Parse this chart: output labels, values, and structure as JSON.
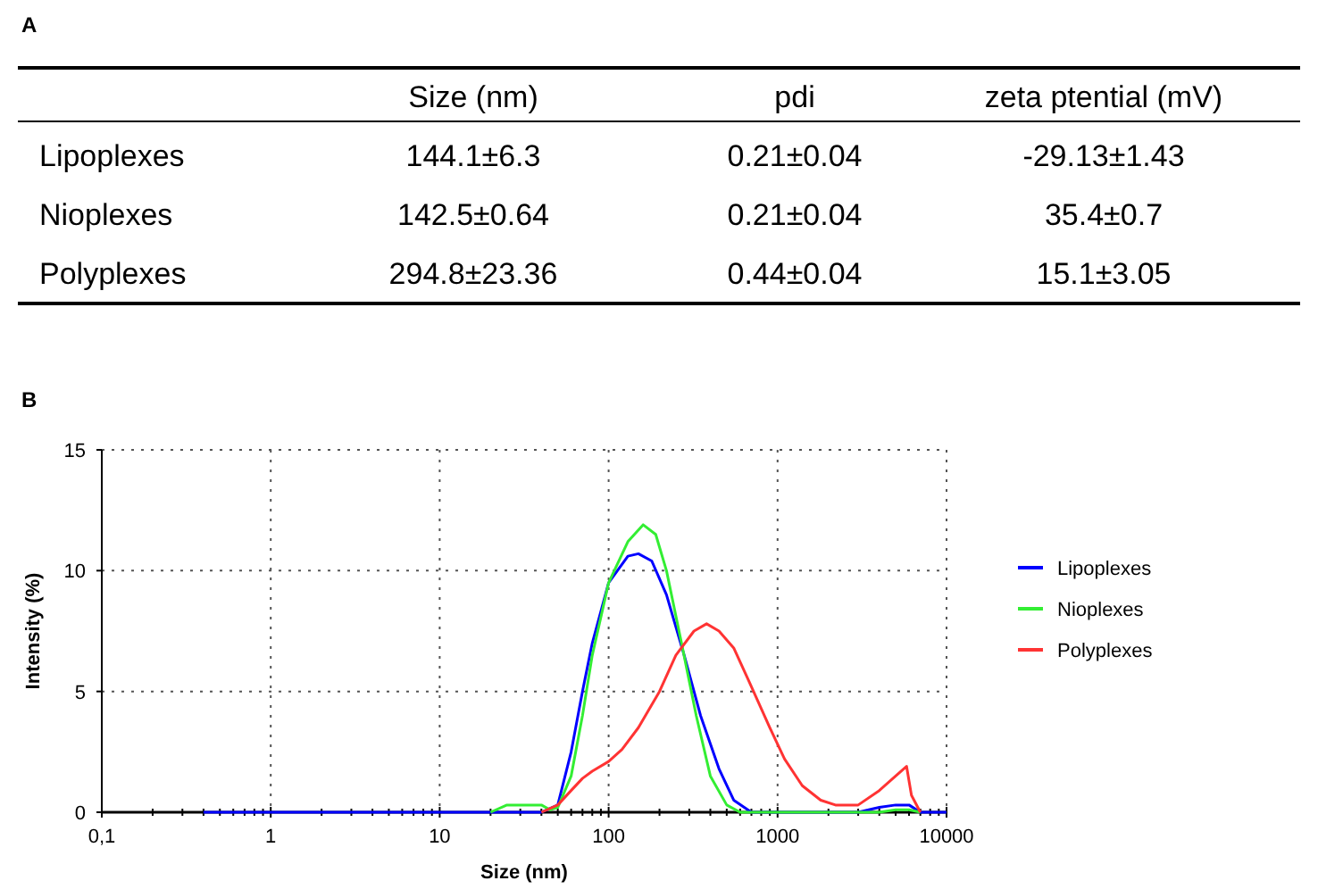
{
  "chart_data": [
    {
      "type": "other",
      "title": "A",
      "categories": [
        "Size (nm)",
        "pdi",
        "zeta ptential (mV)"
      ],
      "y_categories": [
        "Lipoplexes",
        "Nioplexes",
        "Polyplexes"
      ],
      "cell_labels": [
        [
          "144.1±6.3",
          "0.21±0.04",
          "-29.13±1.43"
        ],
        [
          "142.5±0.64",
          "0.21±0.04",
          "35.4±0.7"
        ],
        [
          "294.8±23.36",
          "0.44±0.04",
          "15.1±3.05"
        ]
      ]
    },
    {
      "type": "line",
      "title": "B",
      "xlabel": "Size (nm)",
      "ylabel": "Intensity (%)",
      "log": "x",
      "grid": true,
      "legend": "right",
      "xlim": [
        0.1,
        10000
      ],
      "xticks": [
        {
          "value": 0.1,
          "label": "0,1"
        },
        1,
        10,
        100,
        1000,
        10000
      ],
      "ylim": [
        0,
        15
      ],
      "yticks": [
        0,
        5,
        10,
        15
      ],
      "series": [
        {
          "name": "Lipoplexes",
          "color": "#0000ff",
          "x": [
            0.4,
            40,
            50,
            60,
            70,
            80,
            100,
            130,
            150,
            180,
            220,
            280,
            350,
            450,
            550,
            700,
            3000,
            4000,
            5000,
            6000,
            7000,
            10000
          ],
          "values": [
            0,
            0,
            0.3,
            2.5,
            5,
            7,
            9.5,
            10.6,
            10.7,
            10.4,
            9,
            6.5,
            4,
            1.8,
            0.5,
            0,
            0,
            0.2,
            0.3,
            0.3,
            0,
            0
          ]
        },
        {
          "name": "Nioplexes",
          "color": "#33ee33",
          "x": [
            20,
            25,
            40,
            45,
            50,
            60,
            70,
            80,
            100,
            130,
            160,
            190,
            220,
            270,
            330,
            400,
            500,
            600,
            4000,
            5000,
            6000,
            7000
          ],
          "values": [
            0,
            0.3,
            0.3,
            0.1,
            0.2,
            1.5,
            4,
            6.5,
            9.5,
            11.2,
            11.9,
            11.5,
            10,
            7,
            4,
            1.5,
            0.3,
            0,
            0,
            0.1,
            0.1,
            0
          ]
        },
        {
          "name": "Polyplexes",
          "color": "#ff3333",
          "x": [
            40,
            50,
            60,
            70,
            80,
            100,
            120,
            150,
            200,
            250,
            320,
            380,
            450,
            550,
            700,
            900,
            1100,
            1400,
            1800,
            2200,
            3000,
            4000,
            5000,
            5800,
            6200,
            7000
          ],
          "values": [
            0,
            0.3,
            0.9,
            1.4,
            1.7,
            2.1,
            2.6,
            3.5,
            5,
            6.5,
            7.5,
            7.8,
            7.5,
            6.8,
            5.2,
            3.5,
            2.2,
            1.1,
            0.5,
            0.3,
            0.3,
            0.9,
            1.5,
            1.9,
            0.7,
            0
          ]
        }
      ]
    }
  ]
}
